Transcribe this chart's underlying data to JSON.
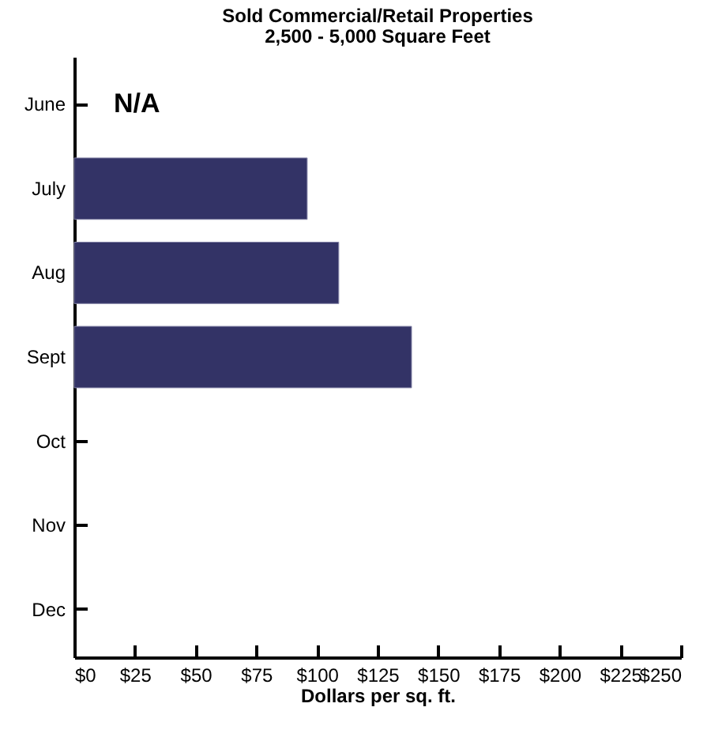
{
  "chart_data": {
    "type": "bar",
    "orientation": "horizontal",
    "title": "Sold Commercial/Retail Properties",
    "subtitle": "2,500 - 5,000 Square Feet",
    "xlabel": "Dollars per sq. ft.",
    "categories": [
      "June",
      "July",
      "Aug",
      "Sept",
      "Oct",
      "Nov",
      "Dec"
    ],
    "values": [
      null,
      96,
      109,
      139,
      null,
      null,
      null
    ],
    "color": "#333366",
    "xlim": [
      0,
      250
    ],
    "xticks": [
      {
        "value": 0,
        "label": "$0"
      },
      {
        "value": 25,
        "label": "$25"
      },
      {
        "value": 50,
        "label": "$50"
      },
      {
        "value": 75,
        "label": "$75"
      },
      {
        "value": 100,
        "label": "$100"
      },
      {
        "value": 125,
        "label": "$125"
      },
      {
        "value": 150,
        "label": "$150"
      },
      {
        "value": 175,
        "label": "$175"
      },
      {
        "value": 200,
        "label": "$200"
      },
      {
        "value": 225,
        "label": "$225"
      },
      {
        "value": 250,
        "label": "$250"
      }
    ],
    "annotations": [
      "N/A"
    ],
    "grid": false
  }
}
